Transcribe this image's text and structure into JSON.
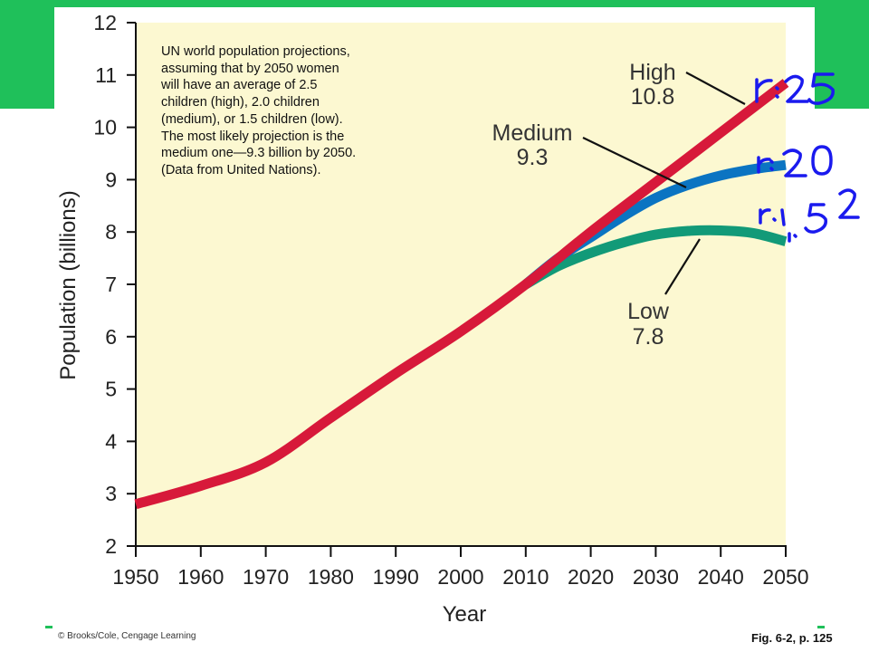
{
  "chart_data": {
    "type": "line",
    "title": "",
    "xlabel": "Year",
    "ylabel": "Population (billions)",
    "xlim": [
      1950,
      2050
    ],
    "ylim": [
      2,
      12
    ],
    "xticks": [
      1950,
      1960,
      1970,
      1980,
      1990,
      2000,
      2010,
      2020,
      2030,
      2040,
      2050
    ],
    "yticks": [
      2,
      3,
      4,
      5,
      6,
      7,
      8,
      9,
      10,
      11,
      12
    ],
    "grid": false,
    "colors": {
      "background": "#fcf8d1",
      "high": "#d7193a",
      "medium": "#0b74c2",
      "low": "#129a78",
      "annotation_ink": "#1a1aee"
    },
    "series": [
      {
        "name": "High",
        "key": "high",
        "x": [
          1950,
          1960,
          1970,
          1980,
          1990,
          2000,
          2010,
          2020,
          2030,
          2040,
          2050
        ],
        "y": [
          2.8,
          3.15,
          3.6,
          4.45,
          5.3,
          6.1,
          7.0,
          8.0,
          8.95,
          9.9,
          10.85
        ]
      },
      {
        "name": "Medium",
        "key": "medium",
        "x": [
          2010,
          2015,
          2020,
          2025,
          2030,
          2035,
          2040,
          2045,
          2050
        ],
        "y": [
          7.0,
          7.5,
          7.9,
          8.3,
          8.65,
          8.9,
          9.08,
          9.2,
          9.28
        ]
      },
      {
        "name": "Low",
        "key": "low",
        "x": [
          2010,
          2015,
          2020,
          2025,
          2030,
          2035,
          2040,
          2045,
          2050
        ],
        "y": [
          7.0,
          7.35,
          7.6,
          7.8,
          7.95,
          8.02,
          8.03,
          7.98,
          7.82
        ]
      }
    ],
    "labels": {
      "high": {
        "name": "High",
        "value": "10.8"
      },
      "medium": {
        "name": "Medium",
        "value": "9.3"
      },
      "low": {
        "name": "Low",
        "value": "7.8"
      }
    },
    "caption": "UN world population projections,\nassuming that by 2050 women\nwill have an average of 2.5\nchildren (high), 2.0 children\n(medium), or 1.5 children (low).\nThe most likely projection is the\nmedium one—9.3 billion by 2050.\n(Data from United Nations).",
    "handwritten_annotations": [
      "r:25",
      "r:20",
      "r:1.52"
    ]
  },
  "footer": {
    "credit": "© Brooks/Cole, Cengage Learning",
    "figure_ref": "Fig. 6-2, p. 125"
  }
}
